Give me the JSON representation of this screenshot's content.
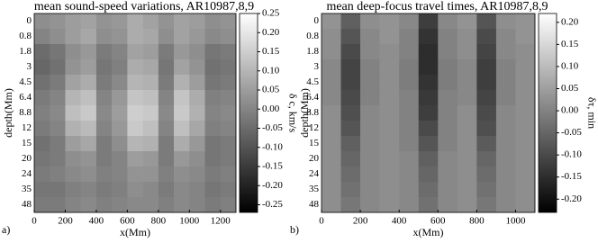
{
  "chart_data": [
    {
      "type": "heatmap",
      "panel_label": "a)",
      "title": "mean sound-speed variations, AR10987,8,9",
      "xlabel": "x(Mm)",
      "ylabel": "depth(Mm)",
      "colorbar_label": "δ c, km/s",
      "xlim": [
        0,
        1300
      ],
      "xticks": [
        0,
        200,
        400,
        600,
        800,
        1000,
        1200
      ],
      "y_categories": [
        "0",
        "0.8",
        "1.8",
        "3",
        "4.5",
        "6.4",
        "8.8",
        "12",
        "15",
        "20",
        "24",
        "35",
        "48"
      ],
      "xbins": [
        0,
        100,
        200,
        300,
        400,
        500,
        600,
        700,
        800,
        900,
        1000,
        1100,
        1200,
        1300
      ],
      "z": [
        [
          0.02,
          0.03,
          0.05,
          0.06,
          0.03,
          0.04,
          0.08,
          0.06,
          0.03,
          0.06,
          0.05,
          0.02,
          0.03
        ],
        [
          0,
          0.02,
          0.05,
          0.07,
          0.02,
          0.03,
          0.08,
          0.07,
          0.02,
          0.06,
          0.04,
          0.01,
          0.02
        ],
        [
          -0.05,
          -0.03,
          0.02,
          0.04,
          -0.02,
          0,
          0.06,
          0.05,
          -0.02,
          0.04,
          0.02,
          -0.03,
          -0.02
        ],
        [
          -0.06,
          -0.04,
          0.03,
          0.05,
          -0.03,
          -0.01,
          0.08,
          0.07,
          -0.03,
          0.06,
          0.03,
          -0.04,
          -0.03
        ],
        [
          -0.04,
          -0.02,
          0.06,
          0.08,
          -0.02,
          0.01,
          0.1,
          0.09,
          -0.02,
          0.09,
          0.05,
          -0.03,
          -0.02
        ],
        [
          -0.02,
          0,
          0.1,
          0.12,
          0,
          0.04,
          0.13,
          0.12,
          0,
          0.13,
          0.08,
          -0.01,
          0
        ],
        [
          -0.01,
          0.01,
          0.12,
          0.14,
          0.01,
          0.05,
          0.15,
          0.14,
          0.01,
          0.14,
          0.09,
          0,
          0.01
        ],
        [
          -0.02,
          0,
          0.09,
          0.11,
          0,
          0.04,
          0.14,
          0.12,
          0,
          0.12,
          0.07,
          -0.01,
          0
        ],
        [
          -0.04,
          -0.02,
          0.05,
          0.07,
          -0.02,
          0.02,
          0.1,
          0.09,
          -0.02,
          0.08,
          0.04,
          -0.03,
          -0.02
        ],
        [
          -0.03,
          -0.02,
          0.02,
          0.03,
          -0.02,
          0,
          0.05,
          0.04,
          -0.02,
          0.04,
          0.02,
          -0.03,
          -0.02
        ],
        [
          -0.02,
          -0.01,
          0.01,
          0.02,
          -0.01,
          0,
          0.03,
          0.03,
          -0.01,
          0.02,
          0.01,
          -0.02,
          -0.01
        ],
        [
          -0.03,
          -0.03,
          -0.01,
          0,
          -0.02,
          -0.01,
          0.02,
          0.01,
          -0.02,
          0.01,
          0,
          -0.03,
          -0.02
        ],
        [
          -0.02,
          -0.02,
          0,
          0.01,
          -0.01,
          0,
          0.01,
          0.01,
          -0.01,
          0.01,
          0,
          -0.02,
          -0.01
        ]
      ],
      "clim": [
        -0.27,
        0.25
      ],
      "cticks": [
        -0.25,
        {
          "value": -0.2,
          "label": "-0.20"
        },
        -0.15,
        {
          "value": -0.1,
          "label": "-0.10"
        },
        -0.05,
        {
          "value": 0,
          "label": "0.00"
        },
        0.05,
        {
          "value": 0.1,
          "label": "0.10"
        },
        0.15,
        {
          "value": 0.2,
          "label": "0.20"
        },
        0.25
      ]
    },
    {
      "type": "heatmap",
      "panel_label": "b)",
      "title": "mean deep-focus travel times, AR10987,8,9",
      "xlabel": "x(Mm)",
      "ylabel": "depth(Mm)",
      "colorbar_label": "δτ, min",
      "xlim": [
        0,
        1100
      ],
      "xticks": [
        0,
        200,
        400,
        600,
        800,
        1000
      ],
      "y_categories": [
        "0",
        "0.8",
        "1.8",
        "3",
        "4.5",
        "6.4",
        "8.8",
        "12",
        "15",
        "20",
        "24",
        "35",
        "48"
      ],
      "xbins": [
        0,
        100,
        200,
        300,
        400,
        500,
        600,
        700,
        800,
        900,
        1000,
        1100
      ],
      "z": [
        [
          0.03,
          -0.06,
          0.02,
          0.03,
          0.01,
          -0.12,
          0.01,
          0.03,
          -0.08,
          0.02,
          0.03
        ],
        [
          0.02,
          -0.08,
          0.01,
          0.03,
          0,
          -0.14,
          0,
          0.02,
          -0.1,
          0.01,
          0.03
        ],
        [
          0.02,
          -0.1,
          0.01,
          0.02,
          0,
          -0.15,
          0,
          0.02,
          -0.11,
          0.01,
          0.02
        ],
        [
          0.01,
          -0.11,
          0,
          0.02,
          -0.01,
          -0.15,
          -0.01,
          0.01,
          -0.12,
          0,
          0.02
        ],
        [
          0.01,
          -0.11,
          0,
          0.02,
          -0.01,
          -0.14,
          -0.01,
          0.01,
          -0.12,
          0,
          0.02
        ],
        [
          0.01,
          -0.1,
          0,
          0.02,
          0,
          -0.13,
          0,
          0.01,
          -0.11,
          0,
          0.02
        ],
        [
          0.02,
          -0.09,
          0.01,
          0.02,
          0,
          -0.12,
          0,
          0.02,
          -0.1,
          0.01,
          0.02
        ],
        [
          0.02,
          -0.08,
          0.01,
          0.02,
          0,
          -0.1,
          0,
          0.02,
          -0.09,
          0.01,
          0.02
        ],
        [
          0.02,
          -0.06,
          0.01,
          0.02,
          0,
          -0.08,
          0,
          0.02,
          -0.07,
          0.01,
          0.02
        ],
        [
          0.02,
          -0.05,
          0.01,
          0.02,
          0.01,
          -0.06,
          0.01,
          0.02,
          -0.05,
          0.01,
          0.02
        ],
        [
          0.02,
          -0.04,
          0.01,
          0.02,
          0.01,
          -0.05,
          0.01,
          0.02,
          -0.04,
          0.01,
          0.02
        ],
        [
          0.02,
          -0.03,
          0.01,
          0.02,
          0.01,
          -0.04,
          0.01,
          0.02,
          -0.03,
          0.01,
          0.02
        ],
        [
          0.02,
          -0.02,
          0.01,
          0.02,
          0.01,
          -0.03,
          0.01,
          0.02,
          -0.02,
          0.01,
          0.02
        ]
      ],
      "clim": [
        -0.23,
        0.22
      ],
      "cticks": [
        {
          "value": -0.2,
          "label": "-0.20"
        },
        -0.15,
        {
          "value": -0.1,
          "label": "-0.10"
        },
        -0.05,
        {
          "value": 0,
          "label": "0.00"
        },
        0.05,
        {
          "value": 0.1,
          "label": "0.10"
        },
        0.15,
        {
          "value": 0.2,
          "label": "0.20"
        }
      ]
    }
  ]
}
